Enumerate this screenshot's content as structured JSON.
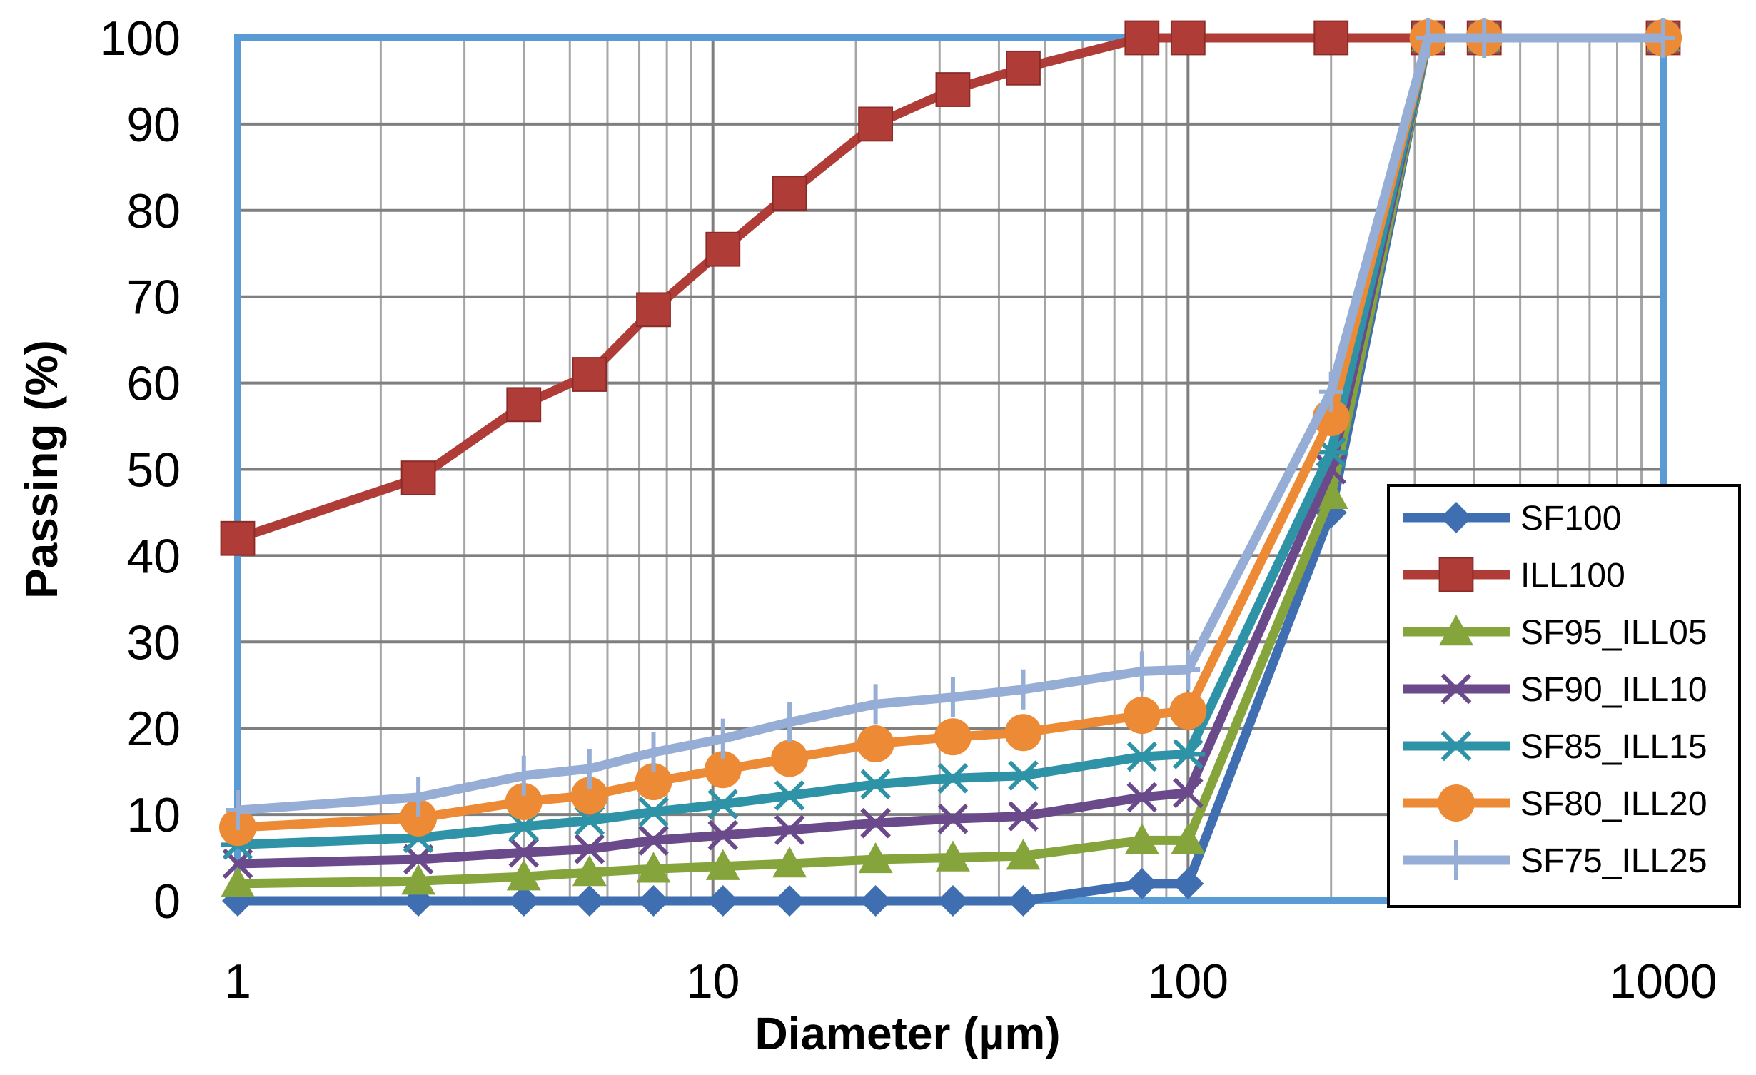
{
  "chart_data": {
    "type": "line",
    "xlabel": "Diameter (µm)",
    "ylabel": "Passing (%)",
    "xscale": "log",
    "xlim": [
      1,
      1000
    ],
    "ylim": [
      0,
      100
    ],
    "x_ticks": [
      "1",
      "10",
      "100",
      "1000"
    ],
    "y_ticks": [
      "0",
      "10",
      "20",
      "30",
      "40",
      "50",
      "60",
      "70",
      "80",
      "90",
      "100"
    ],
    "grid": true,
    "legend_position": "right",
    "x": [
      1,
      2.4,
      4,
      5.5,
      7.5,
      10.5,
      14.5,
      22,
      32,
      45,
      80,
      100,
      200,
      320,
      420,
      1000
    ],
    "series": [
      {
        "name": "SF100",
        "color": "#3f6fb0",
        "marker": "diamond",
        "values": [
          0,
          0,
          0,
          0,
          0,
          0,
          0,
          0,
          0,
          0,
          2,
          2,
          45,
          100,
          100,
          100
        ]
      },
      {
        "name": "ILL100",
        "color": "#b03c38",
        "marker": "square",
        "values": [
          42,
          49,
          57.5,
          61,
          68.5,
          75.5,
          82,
          90,
          94,
          96.5,
          100,
          100,
          100,
          100,
          100,
          100
        ]
      },
      {
        "name": "SF95_ILL05",
        "color": "#86a43c",
        "marker": "triangle",
        "values": [
          2,
          2.3,
          2.8,
          3.3,
          3.7,
          4,
          4.3,
          4.8,
          5,
          5.2,
          7,
          7,
          47,
          100,
          100,
          100
        ]
      },
      {
        "name": "SF90_ILL10",
        "color": "#6b4a8c",
        "marker": "x",
        "values": [
          4.3,
          4.8,
          5.6,
          6,
          7,
          7.6,
          8.2,
          9,
          9.5,
          9.8,
          12,
          12.5,
          50,
          100,
          100,
          100
        ]
      },
      {
        "name": "SF85_ILL15",
        "color": "#2e93a6",
        "marker": "star",
        "values": [
          6.5,
          7.3,
          8.6,
          9.3,
          10.3,
          11.2,
          12.2,
          13.5,
          14.2,
          14.5,
          16.7,
          17,
          52,
          100,
          100,
          100
        ]
      },
      {
        "name": "SF80_ILL20",
        "color": "#ec8a35",
        "marker": "circle",
        "values": [
          8.5,
          9.6,
          11.5,
          12.2,
          13.8,
          15.2,
          16.5,
          18.2,
          19,
          19.5,
          21.5,
          22,
          56,
          100,
          100,
          100
        ]
      },
      {
        "name": "SF75_ILL25",
        "color": "#96aed6",
        "marker": "plus",
        "values": [
          10.5,
          12,
          14.5,
          15.3,
          17.2,
          18.8,
          20.7,
          22.8,
          23.6,
          24.5,
          26.6,
          26.8,
          59,
          100,
          100,
          100
        ]
      }
    ]
  }
}
